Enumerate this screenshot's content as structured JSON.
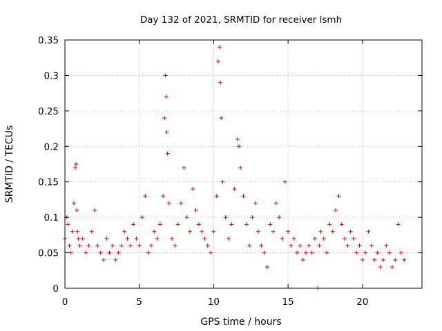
{
  "chart_data": {
    "type": "scatter",
    "title": "Day 132 of 2021, SRMTID for receiver lsmh",
    "xlabel": "GPS time / hours",
    "ylabel": "SRMTID / TECUs",
    "xlim": [
      0,
      24
    ],
    "ylim": [
      0,
      0.35
    ],
    "xticks": [
      0,
      5,
      10,
      15,
      20
    ],
    "xtick_labels": [
      "0",
      "5",
      "10",
      "15",
      "20"
    ],
    "yticks": [
      0,
      0.05,
      0.1,
      0.15,
      0.2,
      0.25,
      0.3,
      0.35
    ],
    "ytick_labels": [
      "0",
      "0.05",
      "0.1",
      "0.15",
      "0.2",
      "0.25",
      "0.3",
      "0.35"
    ],
    "grid": true,
    "marker": "+",
    "marker_color": "#e00000",
    "series": [
      {
        "name": "SRMTID",
        "x": [
          0.0,
          0.1,
          0.2,
          0.3,
          0.4,
          0.5,
          0.6,
          0.7,
          0.75,
          0.8,
          0.85,
          0.9,
          1.0,
          1.2,
          1.4,
          1.6,
          1.8,
          2.0,
          2.2,
          2.4,
          2.6,
          2.8,
          3.0,
          3.2,
          3.4,
          3.6,
          3.8,
          4.0,
          4.2,
          4.4,
          4.6,
          4.8,
          5.0,
          5.2,
          5.4,
          5.6,
          5.8,
          6.0,
          6.2,
          6.4,
          6.6,
          6.7,
          6.75,
          6.8,
          6.85,
          6.9,
          7.0,
          7.2,
          7.4,
          7.6,
          7.8,
          8.0,
          8.2,
          8.4,
          8.6,
          8.8,
          9.0,
          9.2,
          9.4,
          9.6,
          9.8,
          10.0,
          10.2,
          10.3,
          10.4,
          10.45,
          10.5,
          10.6,
          10.8,
          11.0,
          11.2,
          11.4,
          11.6,
          11.7,
          11.8,
          12.0,
          12.2,
          12.4,
          12.6,
          12.8,
          13.0,
          13.2,
          13.4,
          13.6,
          13.8,
          14.0,
          14.2,
          14.4,
          14.6,
          14.8,
          15.0,
          15.2,
          15.4,
          15.6,
          15.8,
          16.0,
          16.2,
          16.4,
          16.6,
          16.8,
          17.0,
          17.1,
          17.2,
          17.4,
          17.6,
          17.8,
          18.0,
          18.2,
          18.4,
          18.6,
          18.8,
          19.0,
          19.2,
          19.4,
          19.6,
          19.8,
          20.0,
          20.2,
          20.4,
          20.6,
          20.8,
          21.0,
          21.2,
          21.4,
          21.6,
          21.8,
          22.0,
          22.2,
          22.4,
          22.6,
          22.8
        ],
        "y": [
          0.07,
          0.1,
          0.09,
          0.06,
          0.05,
          0.08,
          0.12,
          0.17,
          0.175,
          0.11,
          0.08,
          0.07,
          0.06,
          0.07,
          0.05,
          0.06,
          0.08,
          0.11,
          0.06,
          0.05,
          0.04,
          0.07,
          0.05,
          0.06,
          0.04,
          0.05,
          0.06,
          0.08,
          0.07,
          0.06,
          0.09,
          0.07,
          0.06,
          0.1,
          0.13,
          0.05,
          0.06,
          0.08,
          0.07,
          0.09,
          0.13,
          0.24,
          0.3,
          0.27,
          0.22,
          0.19,
          0.12,
          0.07,
          0.06,
          0.09,
          0.12,
          0.17,
          0.1,
          0.08,
          0.14,
          0.11,
          0.09,
          0.08,
          0.07,
          0.06,
          0.05,
          0.08,
          0.13,
          0.32,
          0.34,
          0.29,
          0.24,
          0.15,
          0.1,
          0.07,
          0.09,
          0.14,
          0.21,
          0.2,
          0.17,
          0.13,
          0.09,
          0.06,
          0.1,
          0.12,
          0.08,
          0.06,
          0.05,
          0.03,
          0.09,
          0.08,
          0.12,
          0.1,
          0.07,
          0.15,
          0.08,
          0.06,
          0.07,
          0.05,
          0.06,
          0.04,
          0.05,
          0.06,
          0.05,
          0.07,
          0.0,
          0.06,
          0.08,
          0.07,
          0.05,
          0.09,
          0.08,
          0.11,
          0.13,
          0.09,
          0.07,
          0.06,
          0.08,
          0.07,
          0.05,
          0.06,
          0.04,
          0.05,
          0.08,
          0.06,
          0.04,
          0.05,
          0.03,
          0.04,
          0.06,
          0.05,
          0.03,
          0.04,
          0.09,
          0.05,
          0.04
        ]
      }
    ]
  }
}
